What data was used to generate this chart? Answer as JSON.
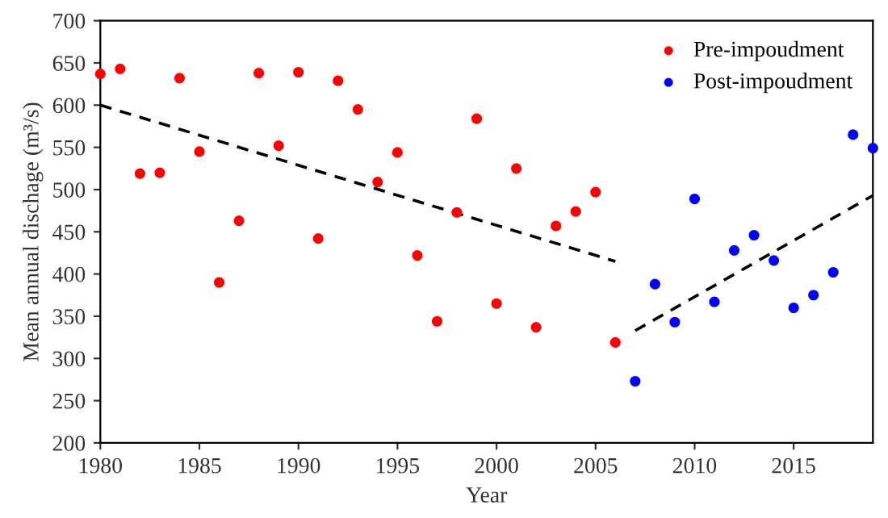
{
  "chart_data": {
    "type": "scatter",
    "xlabel": "Year",
    "ylabel": "Mean annual dischage (m³/s)",
    "xlim": [
      1980,
      2019
    ],
    "xticks": [
      1980,
      1985,
      1990,
      1995,
      2000,
      2005,
      2010,
      2015
    ],
    "ylim": [
      200,
      700
    ],
    "yticks": [
      200,
      250,
      300,
      350,
      400,
      450,
      500,
      550,
      600,
      650,
      700
    ],
    "grid": false,
    "legend": "top right",
    "marker": "circle",
    "series": [
      {
        "name": "Pre-impoudment",
        "color": "#ff0000",
        "x": [
          1980,
          1981,
          1982,
          1983,
          1984,
          1985,
          1986,
          1987,
          1988,
          1989,
          1990,
          1991,
          1992,
          1993,
          1994,
          1995,
          1996,
          1997,
          1998,
          1999,
          2000,
          2001,
          2002,
          2003,
          2004,
          2005,
          2006
        ],
        "values": [
          637,
          643,
          519,
          520,
          632,
          545,
          390,
          463,
          638,
          552,
          639,
          442,
          629,
          595,
          509,
          544,
          422,
          344,
          473,
          584,
          365,
          525,
          337,
          457,
          474,
          497,
          319
        ]
      },
      {
        "name": "Post-impoudment",
        "color": "#0000ff",
        "x": [
          2007,
          2008,
          2009,
          2010,
          2011,
          2012,
          2013,
          2014,
          2015,
          2016,
          2017,
          2018,
          2019
        ],
        "values": [
          273,
          388,
          343,
          489,
          367,
          428,
          446,
          416,
          360,
          375,
          402,
          565,
          549
        ]
      },
      {
        "type": "line",
        "color": "#000000",
        "line_style": "dashed",
        "marker": "none",
        "x": [
          1980,
          2006
        ],
        "values": [
          600,
          415
        ]
      },
      {
        "type": "line",
        "color": "#000000",
        "line_style": "dashed",
        "marker": "none",
        "x": [
          2007,
          2019
        ],
        "values": [
          333,
          493
        ]
      }
    ]
  }
}
